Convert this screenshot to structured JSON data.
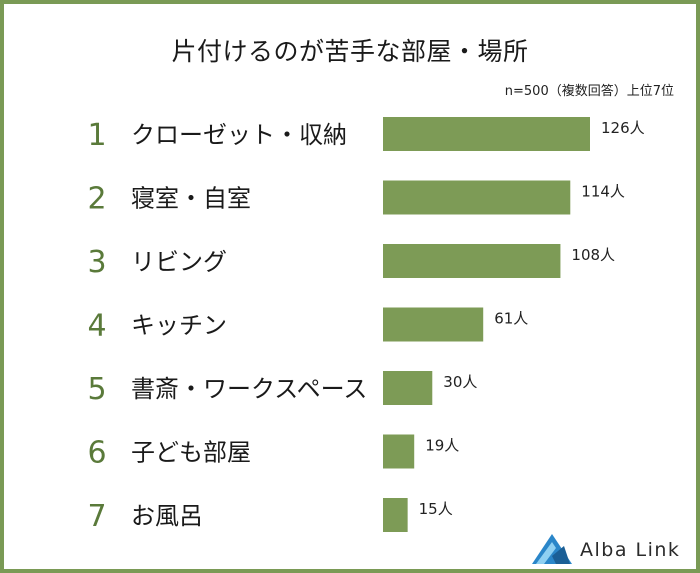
{
  "title": "片付けるのが苦手な部屋・場所",
  "note": "n=500（複数回答）上位7位",
  "brand": "Alba Link",
  "colors": {
    "bar": "#7d9b56",
    "rank": "#5a7a3a",
    "border": "#7a9a55",
    "logo": "#2a86c9"
  },
  "chart_data": {
    "type": "bar",
    "orientation": "horizontal",
    "ranks": [
      "1",
      "2",
      "3",
      "4",
      "5",
      "6",
      "7"
    ],
    "categories": [
      "クローゼット・収納",
      "寝室・自室",
      "リビング",
      "キッチン",
      "書斎・ワークスペース",
      "子ども部屋",
      "お風呂"
    ],
    "values": [
      126,
      114,
      108,
      61,
      30,
      19,
      15
    ],
    "value_labels": [
      "126人",
      "114人",
      "108人",
      "61人",
      "30人",
      "19人",
      "15人"
    ],
    "title": "片付けるのが苦手な部屋・場所",
    "xlim": [
      0,
      130
    ],
    "grid": false,
    "legend": "none"
  }
}
